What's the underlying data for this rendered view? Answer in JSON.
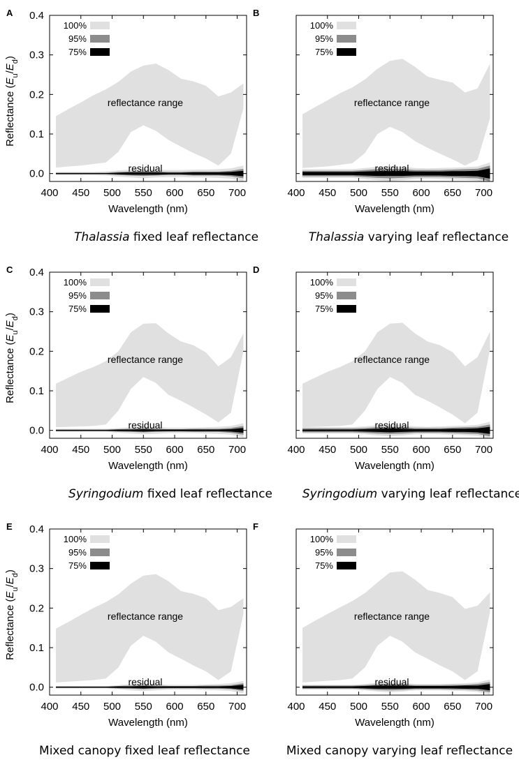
{
  "colors": {
    "range": "#e0e0e0",
    "p95": "#8c8c8c",
    "p75": "#000000",
    "frame": "#000000"
  },
  "legend": [
    {
      "label": "100%",
      "color": "#e0e0e0"
    },
    {
      "label": "95%",
      "color": "#8c8c8c"
    },
    {
      "label": "75%",
      "color": "#000000"
    }
  ],
  "chart_data": [
    {
      "panel": "A",
      "type": "area",
      "caption_species": "Thalassia",
      "caption_rest": " fixed leaf reflectance",
      "xlabel": "Wavelength (nm)",
      "ylabel": "Reflectance (E_u/E_d)",
      "xlim": [
        400,
        715
      ],
      "ylim": [
        -0.02,
        0.4
      ],
      "xticks": [
        400,
        450,
        500,
        550,
        600,
        650,
        700
      ],
      "yticks": [
        0.0,
        0.1,
        0.2,
        0.3,
        0.4
      ],
      "annotations": [
        "reflectance range",
        "residual"
      ],
      "x": [
        410,
        430,
        450,
        470,
        490,
        510,
        530,
        550,
        570,
        590,
        610,
        630,
        650,
        670,
        690,
        710
      ],
      "range_low": [
        0.015,
        0.018,
        0.02,
        0.024,
        0.028,
        0.055,
        0.105,
        0.122,
        0.108,
        0.085,
        0.068,
        0.052,
        0.038,
        0.02,
        0.05,
        0.165
      ],
      "range_high": [
        0.145,
        0.163,
        0.18,
        0.198,
        0.213,
        0.232,
        0.258,
        0.273,
        0.278,
        0.262,
        0.24,
        0.233,
        0.222,
        0.195,
        0.205,
        0.228
      ],
      "residual_100": [
        0.004,
        0.004,
        0.004,
        0.004,
        0.005,
        0.008,
        0.01,
        0.012,
        0.01,
        0.009,
        0.009,
        0.01,
        0.01,
        0.011,
        0.013,
        0.02
      ],
      "residual_95": [
        0.002,
        0.002,
        0.002,
        0.002,
        0.002,
        0.004,
        0.005,
        0.006,
        0.005,
        0.004,
        0.004,
        0.005,
        0.005,
        0.005,
        0.007,
        0.012
      ],
      "residual_75": [
        0.001,
        0.001,
        0.001,
        0.001,
        0.001,
        0.002,
        0.003,
        0.003,
        0.003,
        0.002,
        0.002,
        0.003,
        0.003,
        0.003,
        0.004,
        0.007
      ]
    },
    {
      "panel": "B",
      "type": "area",
      "caption_species": "Thalassia",
      "caption_rest": " varying leaf reflectance",
      "xlabel": "Wavelength (nm)",
      "ylabel": "",
      "xlim": [
        400,
        715
      ],
      "ylim": [
        -0.02,
        0.4
      ],
      "xticks": [
        400,
        450,
        500,
        550,
        600,
        650,
        700
      ],
      "yticks": [
        0.0,
        0.1,
        0.2,
        0.3,
        0.4
      ],
      "annotations": [
        "reflectance range",
        "residual"
      ],
      "x": [
        410,
        430,
        450,
        470,
        490,
        510,
        530,
        550,
        570,
        590,
        610,
        630,
        650,
        670,
        690,
        710
      ],
      "range_low": [
        0.014,
        0.016,
        0.018,
        0.022,
        0.026,
        0.052,
        0.1,
        0.118,
        0.105,
        0.082,
        0.065,
        0.05,
        0.036,
        0.02,
        0.035,
        0.14
      ],
      "range_high": [
        0.15,
        0.168,
        0.185,
        0.203,
        0.218,
        0.238,
        0.265,
        0.285,
        0.29,
        0.27,
        0.245,
        0.237,
        0.23,
        0.205,
        0.215,
        0.278
      ],
      "residual_100": [
        0.011,
        0.011,
        0.011,
        0.011,
        0.011,
        0.014,
        0.017,
        0.019,
        0.017,
        0.014,
        0.013,
        0.014,
        0.015,
        0.016,
        0.018,
        0.028
      ],
      "residual_95": [
        0.007,
        0.007,
        0.007,
        0.007,
        0.007,
        0.009,
        0.011,
        0.012,
        0.011,
        0.009,
        0.009,
        0.009,
        0.01,
        0.011,
        0.012,
        0.02
      ],
      "residual_75": [
        0.004,
        0.004,
        0.004,
        0.004,
        0.004,
        0.005,
        0.006,
        0.006,
        0.006,
        0.005,
        0.005,
        0.005,
        0.006,
        0.006,
        0.007,
        0.013
      ]
    },
    {
      "panel": "C",
      "type": "area",
      "caption_species": "Syringodium",
      "caption_rest": " fixed leaf reflectance",
      "xlabel": "Wavelength (nm)",
      "ylabel": "Reflectance (E_u/E_d)",
      "xlim": [
        400,
        715
      ],
      "ylim": [
        -0.02,
        0.4
      ],
      "xticks": [
        400,
        450,
        500,
        550,
        600,
        650,
        700
      ],
      "yticks": [
        0.0,
        0.1,
        0.2,
        0.3,
        0.4
      ],
      "annotations": [
        "reflectance range",
        "residual"
      ],
      "x": [
        410,
        430,
        450,
        470,
        490,
        510,
        530,
        550,
        570,
        590,
        610,
        630,
        650,
        670,
        690,
        710
      ],
      "range_low": [
        0.008,
        0.009,
        0.01,
        0.011,
        0.015,
        0.05,
        0.105,
        0.135,
        0.12,
        0.09,
        0.075,
        0.058,
        0.04,
        0.02,
        0.045,
        0.2
      ],
      "range_high": [
        0.118,
        0.133,
        0.148,
        0.16,
        0.175,
        0.2,
        0.248,
        0.27,
        0.271,
        0.245,
        0.225,
        0.215,
        0.197,
        0.162,
        0.185,
        0.245
      ],
      "residual_100": [
        0.004,
        0.004,
        0.004,
        0.004,
        0.004,
        0.006,
        0.008,
        0.01,
        0.009,
        0.007,
        0.007,
        0.007,
        0.008,
        0.009,
        0.011,
        0.018
      ],
      "residual_95": [
        0.002,
        0.002,
        0.002,
        0.002,
        0.002,
        0.003,
        0.004,
        0.005,
        0.004,
        0.003,
        0.003,
        0.004,
        0.004,
        0.004,
        0.006,
        0.011
      ],
      "residual_75": [
        0.001,
        0.001,
        0.001,
        0.001,
        0.001,
        0.002,
        0.002,
        0.003,
        0.002,
        0.002,
        0.002,
        0.002,
        0.002,
        0.002,
        0.003,
        0.006
      ]
    },
    {
      "panel": "D",
      "type": "area",
      "caption_species": "Syringodium",
      "caption_rest": " varying leaf reflectance",
      "xlabel": "Wavelength (nm)",
      "ylabel": "",
      "xlim": [
        400,
        715
      ],
      "ylim": [
        -0.02,
        0.4
      ],
      "xticks": [
        400,
        450,
        500,
        550,
        600,
        650,
        700
      ],
      "yticks": [
        0.0,
        0.1,
        0.2,
        0.3,
        0.4
      ],
      "annotations": [
        "reflectance range",
        "residual"
      ],
      "x": [
        410,
        430,
        450,
        470,
        490,
        510,
        530,
        550,
        570,
        590,
        610,
        630,
        650,
        670,
        690,
        710
      ],
      "range_low": [
        0.008,
        0.009,
        0.01,
        0.011,
        0.015,
        0.05,
        0.105,
        0.135,
        0.12,
        0.09,
        0.075,
        0.058,
        0.04,
        0.018,
        0.045,
        0.205
      ],
      "range_high": [
        0.118,
        0.133,
        0.148,
        0.16,
        0.175,
        0.2,
        0.248,
        0.27,
        0.272,
        0.245,
        0.225,
        0.215,
        0.198,
        0.162,
        0.185,
        0.25
      ],
      "residual_100": [
        0.008,
        0.008,
        0.008,
        0.008,
        0.008,
        0.01,
        0.013,
        0.015,
        0.013,
        0.01,
        0.009,
        0.01,
        0.011,
        0.012,
        0.014,
        0.022
      ],
      "residual_95": [
        0.005,
        0.005,
        0.005,
        0.005,
        0.005,
        0.006,
        0.008,
        0.009,
        0.008,
        0.006,
        0.006,
        0.006,
        0.007,
        0.008,
        0.009,
        0.015
      ],
      "residual_75": [
        0.002,
        0.002,
        0.002,
        0.002,
        0.002,
        0.003,
        0.004,
        0.005,
        0.004,
        0.003,
        0.003,
        0.003,
        0.004,
        0.004,
        0.005,
        0.009
      ]
    },
    {
      "panel": "E",
      "type": "area",
      "caption_species": "",
      "caption_rest": "Mixed canopy fixed leaf reflectance",
      "xlabel": "Wavelength (nm)",
      "ylabel": "Reflectance (E_u/E_d)",
      "xlim": [
        400,
        715
      ],
      "ylim": [
        -0.02,
        0.4
      ],
      "xticks": [
        400,
        450,
        500,
        550,
        600,
        650,
        700
      ],
      "yticks": [
        0.0,
        0.1,
        0.2,
        0.3,
        0.4
      ],
      "annotations": [
        "reflectance range",
        "residual"
      ],
      "x": [
        410,
        430,
        450,
        470,
        490,
        510,
        530,
        550,
        570,
        590,
        610,
        630,
        650,
        670,
        690,
        710
      ],
      "range_low": [
        0.012,
        0.014,
        0.016,
        0.018,
        0.022,
        0.05,
        0.105,
        0.13,
        0.115,
        0.088,
        0.072,
        0.055,
        0.04,
        0.018,
        0.04,
        0.185
      ],
      "range_high": [
        0.148,
        0.165,
        0.183,
        0.2,
        0.215,
        0.235,
        0.262,
        0.282,
        0.286,
        0.268,
        0.243,
        0.236,
        0.225,
        0.195,
        0.203,
        0.225
      ],
      "residual_100": [
        0.003,
        0.003,
        0.003,
        0.003,
        0.003,
        0.005,
        0.008,
        0.01,
        0.008,
        0.006,
        0.006,
        0.006,
        0.007,
        0.008,
        0.01,
        0.016
      ],
      "residual_95": [
        0.002,
        0.002,
        0.002,
        0.002,
        0.002,
        0.003,
        0.004,
        0.005,
        0.004,
        0.003,
        0.003,
        0.003,
        0.004,
        0.004,
        0.005,
        0.01
      ],
      "residual_75": [
        0.001,
        0.001,
        0.001,
        0.001,
        0.001,
        0.002,
        0.002,
        0.003,
        0.002,
        0.002,
        0.002,
        0.002,
        0.002,
        0.002,
        0.003,
        0.006
      ]
    },
    {
      "panel": "F",
      "type": "area",
      "caption_species": "",
      "caption_rest": "Mixed canopy varying leaf reflectance",
      "xlabel": "Wavelength (nm)",
      "ylabel": "",
      "xlim": [
        400,
        715
      ],
      "ylim": [
        -0.02,
        0.4
      ],
      "xticks": [
        400,
        450,
        500,
        550,
        600,
        650,
        700
      ],
      "yticks": [
        0.0,
        0.1,
        0.2,
        0.3,
        0.4
      ],
      "annotations": [
        "reflectance range",
        "residual"
      ],
      "x": [
        410,
        430,
        450,
        470,
        490,
        510,
        530,
        550,
        570,
        590,
        610,
        630,
        650,
        670,
        690,
        710
      ],
      "range_low": [
        0.012,
        0.014,
        0.016,
        0.018,
        0.022,
        0.05,
        0.105,
        0.13,
        0.115,
        0.088,
        0.072,
        0.055,
        0.04,
        0.018,
        0.04,
        0.19
      ],
      "range_high": [
        0.15,
        0.168,
        0.185,
        0.202,
        0.218,
        0.238,
        0.265,
        0.29,
        0.293,
        0.272,
        0.246,
        0.238,
        0.228,
        0.198,
        0.206,
        0.24
      ],
      "residual_100": [
        0.006,
        0.006,
        0.006,
        0.006,
        0.006,
        0.008,
        0.011,
        0.013,
        0.011,
        0.008,
        0.008,
        0.008,
        0.009,
        0.01,
        0.012,
        0.019
      ],
      "residual_95": [
        0.004,
        0.004,
        0.004,
        0.004,
        0.004,
        0.005,
        0.007,
        0.008,
        0.007,
        0.005,
        0.005,
        0.005,
        0.006,
        0.006,
        0.008,
        0.013
      ],
      "residual_75": [
        0.002,
        0.002,
        0.002,
        0.002,
        0.002,
        0.003,
        0.004,
        0.004,
        0.004,
        0.003,
        0.003,
        0.003,
        0.003,
        0.004,
        0.004,
        0.008
      ]
    }
  ]
}
